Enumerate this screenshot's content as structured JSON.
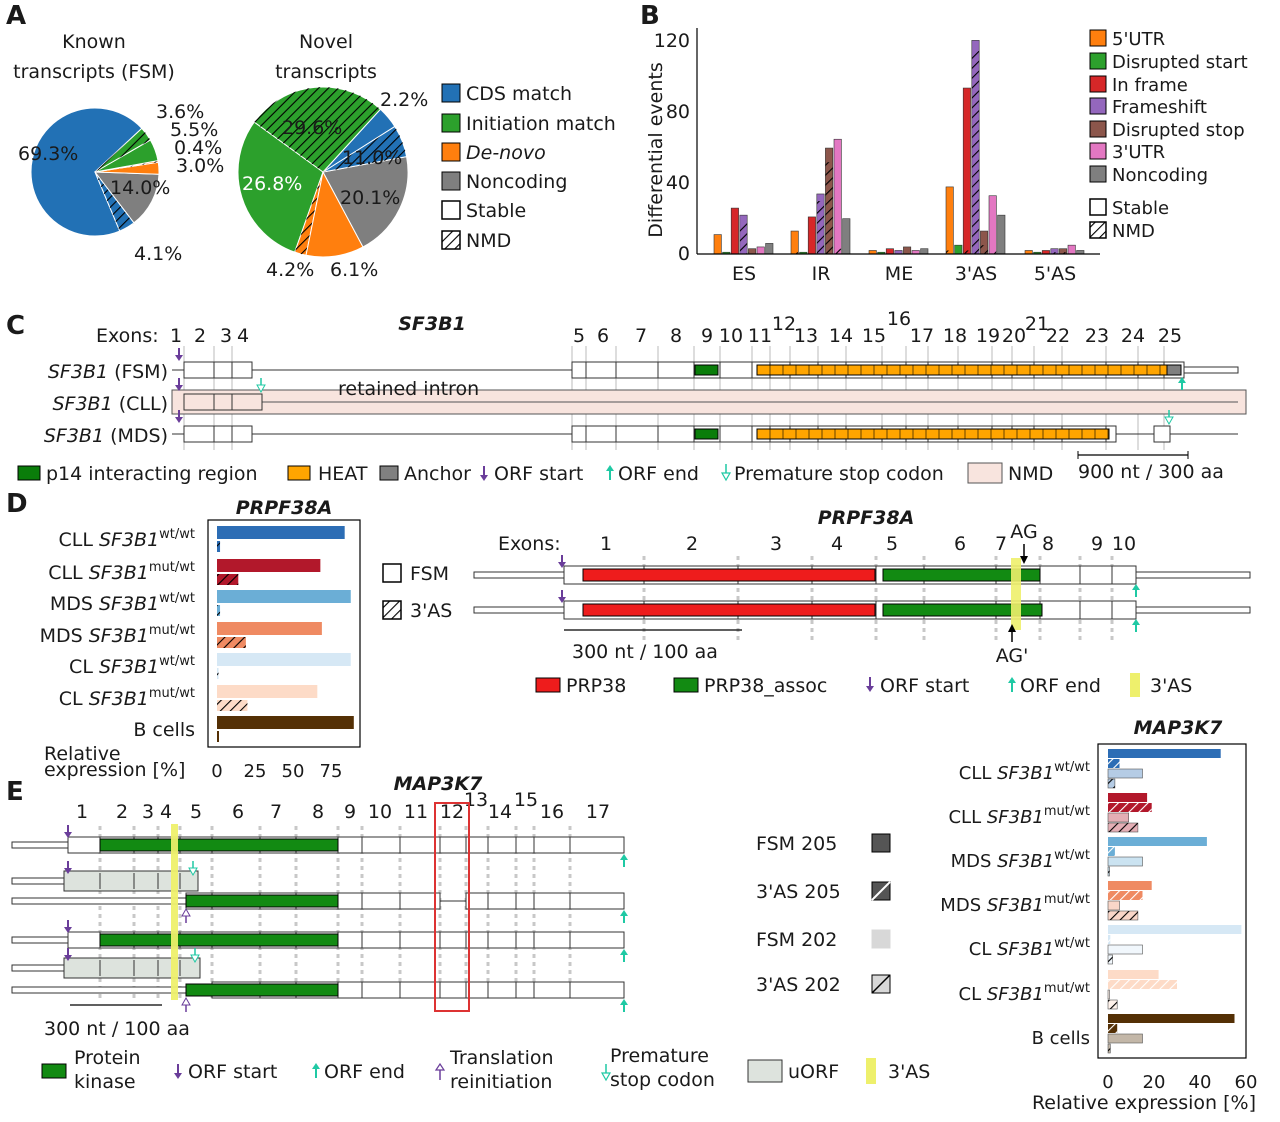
{
  "panel_a": {
    "label": "A",
    "known_title": [
      "Known",
      "transcripts (FSM)"
    ],
    "novel_title": [
      "Novel",
      "transcripts"
    ],
    "known_pie": {
      "type": "pie",
      "slices": [
        {
          "label": "69.3%",
          "value": 69.3,
          "category": "CDS match",
          "pattern": "Stable"
        },
        {
          "label": "4.1%",
          "value": 4.1,
          "category": "CDS match",
          "pattern": "NMD"
        },
        {
          "label": "14.0%",
          "value": 14.0,
          "category": "Noncoding",
          "pattern": "Stable"
        },
        {
          "label": "3.0%",
          "value": 3.0,
          "category": "De-novo",
          "pattern": "Stable"
        },
        {
          "label": "0.4%",
          "value": 0.4,
          "category": "De-novo",
          "pattern": "NMD"
        },
        {
          "label": "5.5%",
          "value": 5.5,
          "category": "Initiation match",
          "pattern": "Stable"
        },
        {
          "label": "3.6%",
          "value": 3.6,
          "category": "Initiation match",
          "pattern": "NMD"
        }
      ]
    },
    "novel_pie": {
      "type": "pie",
      "slices": [
        {
          "label": "29.6%",
          "value": 29.6,
          "category": "Initiation match",
          "pattern": "Stable"
        },
        {
          "label": "2.2%",
          "value": 2.2,
          "category": "De-novo",
          "pattern": "NMD"
        },
        {
          "label": "11.0%",
          "value": 11.0,
          "category": "De-novo",
          "pattern": "Stable"
        },
        {
          "label": "20.1%",
          "value": 20.1,
          "category": "Noncoding",
          "pattern": "Stable"
        },
        {
          "label": "6.1%",
          "value": 6.1,
          "category": "CDS match",
          "pattern": "NMD"
        },
        {
          "label": "4.2%",
          "value": 4.2,
          "category": "CDS match",
          "pattern": "Stable"
        },
        {
          "label": "26.8%",
          "value": 26.8,
          "category": "Initiation match",
          "pattern": "NMD"
        }
      ]
    },
    "legend": [
      {
        "label": "CDS match",
        "color": "#2271b5"
      },
      {
        "label": "Initiation match",
        "color": "#2ca02c"
      },
      {
        "label": "De-novo",
        "color": "#ff7f0e",
        "italic": true
      },
      {
        "label": "Noncoding",
        "color": "#7f7f7f"
      },
      {
        "label": "Stable",
        "color": "#ffffff"
      },
      {
        "label": "NMD",
        "color": "#ffffff",
        "hatched": true
      }
    ],
    "colors": {
      "cds": "#2271b5",
      "init": "#2ca02c",
      "denovo": "#ff7f0e",
      "noncoding": "#7f7f7f"
    }
  },
  "panel_b": {
    "label": "B",
    "ylabel": "Differential events",
    "yticks": [
      "0",
      "40",
      "80",
      "120"
    ],
    "chart_data": {
      "type": "bar",
      "categories": [
        "ES",
        "IR",
        "ME",
        "3'AS",
        "5'AS"
      ],
      "ylim": [
        0,
        128
      ],
      "ylabel": "Differential events",
      "series": [
        {
          "name": "5'UTR",
          "color": "#ff7f0e",
          "values": [
            11,
            13,
            2,
            38,
            2
          ],
          "nmd": [
            0,
            1,
            0,
            2,
            0
          ]
        },
        {
          "name": "Disrupted start",
          "color": "#2ca02c",
          "values": [
            1,
            1,
            1,
            5,
            1
          ],
          "nmd": [
            0,
            0,
            0,
            0,
            0
          ]
        },
        {
          "name": "In frame",
          "color": "#d62728",
          "values": [
            26,
            21,
            3,
            94,
            2
          ],
          "nmd": [
            0,
            0,
            0,
            2,
            0
          ]
        },
        {
          "name": "Frameshift",
          "color": "#9467bd",
          "values": [
            22,
            34,
            2,
            121,
            3
          ],
          "nmd": [
            18,
            30,
            0,
            115,
            1
          ]
        },
        {
          "name": "Disrupted stop",
          "color": "#8c564b",
          "values": [
            3,
            60,
            4,
            13,
            3
          ],
          "nmd": [
            1,
            52,
            0,
            5,
            1
          ]
        },
        {
          "name": "3'UTR",
          "color": "#e377c2",
          "values": [
            4,
            65,
            2,
            33,
            5
          ],
          "nmd": [
            0,
            3,
            0,
            2,
            0
          ]
        },
        {
          "name": "Noncoding",
          "color": "#7f7f7f",
          "values": [
            6,
            20,
            3,
            22,
            2
          ],
          "nmd": [
            0,
            0,
            0,
            0,
            0
          ]
        }
      ]
    },
    "legend_extra": [
      "Stable",
      "NMD"
    ]
  },
  "panel_c": {
    "label": "C",
    "gene": "SF3B1",
    "exons_label": "Exons:",
    "exon_numbers": [
      "1",
      "2",
      "3",
      "4",
      "5",
      "6",
      "7",
      "8",
      "9",
      "10",
      "11",
      "12",
      "13",
      "14",
      "15",
      "16",
      "17",
      "18",
      "19",
      "20",
      "21",
      "22",
      "23",
      "24",
      "25"
    ],
    "tracks": [
      {
        "gene": "SF3B1",
        "suffix": " (FSM)"
      },
      {
        "gene": "SF3B1",
        "suffix": " (CLL)"
      },
      {
        "gene": "SF3B1",
        "suffix": " (MDS)"
      }
    ],
    "retained_intron": "retained intron",
    "legend": [
      "p14 interacting region",
      "HEAT",
      "Anchor",
      "ORF start",
      "ORF end",
      "Premature stop codon",
      "NMD"
    ],
    "scale": "900 nt / 300 aa",
    "colors": {
      "p14": "#0a7d0a",
      "heat": "#ffa500",
      "anchor": "#808080",
      "nmd": "#f8e4de",
      "orf_start": "#6a3d9a",
      "orf_end": "#1fc9a4"
    }
  },
  "panel_d": {
    "label": "D",
    "bar_title": "PRPF38A",
    "gene_title": "PRPF38A",
    "rows": [
      {
        "prefix": "CLL ",
        "gene": "SF3B1",
        "sup": "wt/wt",
        "fsm": 84,
        "as3": 2,
        "color": "#2c6db5"
      },
      {
        "prefix": "CLL ",
        "gene": "SF3B1",
        "sup": "mut/wt",
        "fsm": 68,
        "as3": 14,
        "color": "#b2182b"
      },
      {
        "prefix": "MDS ",
        "gene": "SF3B1",
        "sup": "wt/wt",
        "fsm": 88,
        "as3": 2,
        "color": "#6baed6"
      },
      {
        "prefix": "MDS ",
        "gene": "SF3B1",
        "sup": "mut/wt",
        "fsm": 69,
        "as3": 19,
        "color": "#ef8a62"
      },
      {
        "prefix": "CL ",
        "gene": "SF3B1",
        "sup": "wt/wt",
        "fsm": 88,
        "as3": 1,
        "color": "#d6e8f5"
      },
      {
        "prefix": "CL ",
        "gene": "SF3B1",
        "sup": "mut/wt",
        "fsm": 66,
        "as3": 20,
        "color": "#fddbc7"
      },
      {
        "prefix": "B cells",
        "gene": "",
        "sup": "",
        "fsm": 90,
        "as3": 0,
        "color": "#543005"
      }
    ],
    "xlabel": [
      "Relative",
      "expression [%]"
    ],
    "xticks": [
      "0",
      "25",
      "50",
      "75"
    ],
    "exons_label": "Exons:",
    "exon_numbers": [
      "1",
      "2",
      "3",
      "4",
      "5",
      "6",
      "7",
      "8",
      "9",
      "10"
    ],
    "isoforms": [
      "FSM",
      "3'AS"
    ],
    "ag": "AG",
    "ag_prime": "AG'",
    "scale": "300 nt / 100 aa",
    "legend": [
      "PRP38",
      "PRP38_assoc",
      "ORF start",
      "ORF end",
      "3'AS"
    ],
    "colors": {
      "prp38": "#ee1c1c",
      "assoc": "#128a12",
      "as3": "#eef06c"
    }
  },
  "panel_e": {
    "label": "E",
    "gene_title": "MAP3K7",
    "exon_numbers": [
      "1",
      "2",
      "3",
      "4",
      "5",
      "6",
      "7",
      "8",
      "9",
      "10",
      "11",
      "12",
      "13",
      "14",
      "15",
      "16",
      "17"
    ],
    "isoforms": [
      "FSM 205",
      "3'AS 205",
      "FSM 202",
      "3'AS 202"
    ],
    "scale": "300 nt / 100 aa",
    "legend": [
      "Protein",
      "kinase",
      "ORF start",
      "ORF end",
      "Translation",
      "reinitiation",
      "Premature",
      "stop codon",
      "uORF",
      "3'AS"
    ],
    "colors": {
      "kinase": "#128a12",
      "uorf": "#dde3dd",
      "as3": "#eef06c",
      "box": "#dd3333"
    }
  },
  "panel_map3k7_bar": {
    "title": "MAP3K7",
    "rows": [
      {
        "prefix": "CLL ",
        "gene": "SF3B1",
        "sup": "wt/wt",
        "color": "#2c6db5",
        "vals": [
          49,
          5,
          15,
          3
        ]
      },
      {
        "prefix": "CLL ",
        "gene": "SF3B1",
        "sup": "mut/wt",
        "color": "#b2182b",
        "vals": [
          17,
          19,
          9,
          13
        ]
      },
      {
        "prefix": "MDS ",
        "gene": "SF3B1",
        "sup": "wt/wt",
        "color": "#6baed6",
        "vals": [
          43,
          3,
          15,
          0
        ]
      },
      {
        "prefix": "MDS ",
        "gene": "SF3B1",
        "sup": "mut/wt",
        "color": "#ef8a62",
        "vals": [
          19,
          15,
          5,
          13
        ]
      },
      {
        "prefix": "CL ",
        "gene": "SF3B1",
        "sup": "wt/wt",
        "color": "#d6e8f5",
        "vals": [
          58,
          1,
          15,
          2
        ]
      },
      {
        "prefix": "CL ",
        "gene": "SF3B1",
        "sup": "mut/wt",
        "color": "#fddbc7",
        "vals": [
          22,
          30,
          0,
          4
        ]
      },
      {
        "prefix": "B cells",
        "gene": "",
        "sup": "",
        "color": "#543005",
        "vals": [
          55,
          4,
          15,
          1
        ]
      }
    ],
    "xticks": [
      "0",
      "20",
      "40",
      "60"
    ],
    "xlabel": "Relative expression [%]"
  }
}
